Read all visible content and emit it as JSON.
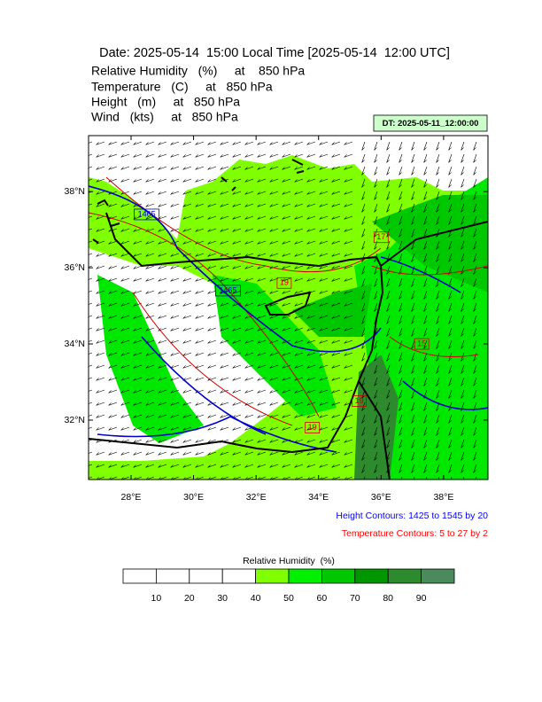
{
  "header": {
    "title": "Date: 2025-05-14  15:00 Local Time [2025-05-14  12:00 UTC]",
    "fields": [
      "Relative Humidity   (%)     at    850 hPa",
      "Temperature   (C)     at   850 hPa",
      "Height   (m)     at   850 hPa",
      "Wind   (kts)     at   850 hPa"
    ],
    "dt_label": "DT: 2025-05-11_12:00:00"
  },
  "map": {
    "lonlim": [
      26.64,
      39.42
    ],
    "latlim": [
      30.44,
      39.47
    ],
    "lon_ticks": [
      {
        "value": 28,
        "label": "28°E"
      },
      {
        "value": 30,
        "label": "30°E"
      },
      {
        "value": 32,
        "label": "32°E"
      },
      {
        "value": 34,
        "label": "34°E"
      },
      {
        "value": 36,
        "label": "36°E"
      },
      {
        "value": 38,
        "label": "38°E"
      }
    ],
    "lat_ticks": [
      {
        "value": 38,
        "label": "38°N"
      },
      {
        "value": 36,
        "label": "36°N"
      },
      {
        "value": 34,
        "label": "34°N"
      },
      {
        "value": 32,
        "label": "32°N"
      }
    ],
    "contour_labels": [
      {
        "text": "1465",
        "lon": 28.5,
        "lat": 37.4,
        "color": "#0000cc"
      },
      {
        "text": "1465",
        "lon": 31.1,
        "lat": 35.4,
        "color": "#0000cc"
      },
      {
        "text": "19",
        "lon": 32.9,
        "lat": 35.6,
        "color": "#cc0000"
      },
      {
        "text": "17",
        "lon": 36.0,
        "lat": 36.8,
        "color": "#cc0000"
      },
      {
        "text": "15",
        "lon": 37.3,
        "lat": 34.0,
        "color": "#cc0000"
      },
      {
        "text": "19",
        "lon": 35.3,
        "lat": 32.5,
        "color": "#cc0000"
      },
      {
        "text": "19",
        "lon": 33.8,
        "lat": 31.8,
        "color": "#cc0000"
      }
    ],
    "notes": [
      "Height Contours: 1425 to 1545 by 20",
      "Temperature Contours: 5 to 27 by 2"
    ]
  },
  "colorbar": {
    "title": "Relative Humidity  (%)",
    "ticks": [
      10,
      20,
      30,
      40,
      50,
      60,
      70,
      80,
      90
    ],
    "colors": [
      "#ffffff",
      "#ffffff",
      "#ffffff",
      "#ffffff",
      "#80ff00",
      "#00f000",
      "#00c800",
      "#009600",
      "#2d8a2d",
      "#4b8b5b"
    ]
  }
}
